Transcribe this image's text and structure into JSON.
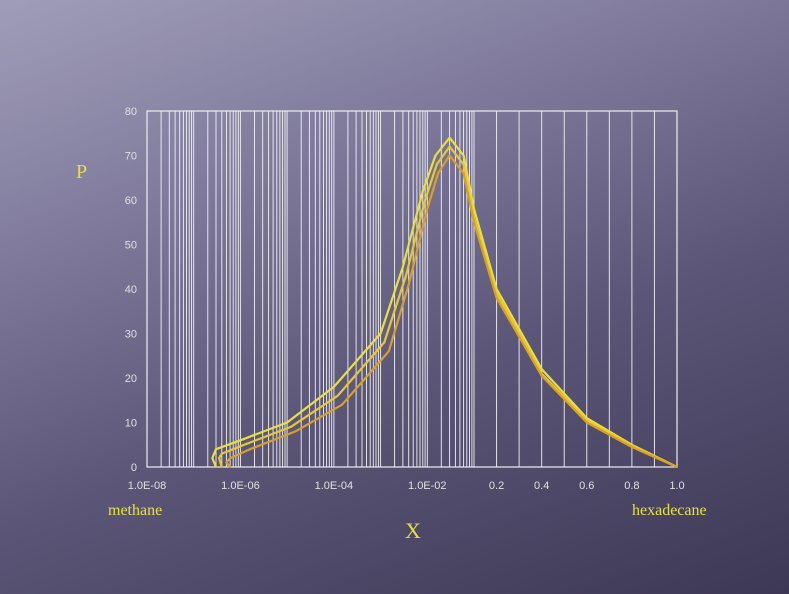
{
  "chart_data": {
    "type": "line",
    "title": "",
    "xlabel": "X",
    "ylabel": "P",
    "x_left_label": "methane",
    "x_right_label": "hexadecane",
    "ylim": [
      0,
      80
    ],
    "yticks": [
      "0",
      "10",
      "20",
      "30",
      "40",
      "50",
      "60",
      "70",
      "80"
    ],
    "x_scale": "log from 1.0E-08 to 0.1, linear from 0.1 to 1.0",
    "xlim": [
      1e-08,
      1.0
    ],
    "xticks": [
      "1.0E-08",
      "1.0E-06",
      "1.0E-04",
      "1.0E-02",
      "0.2",
      "0.4",
      "0.6",
      "0.8",
      "1.0"
    ],
    "grid": "vertical",
    "series": [
      {
        "color": "#e8e040",
        "x": [
          3e-07,
          2.5e-07,
          3e-07,
          1e-06,
          1e-05,
          0.0001,
          0.001,
          0.003,
          0.008,
          0.015,
          0.03,
          0.06,
          0.1,
          0.2,
          0.4,
          0.6,
          0.8,
          1.0
        ],
        "y": [
          0,
          2,
          4,
          6,
          10,
          18,
          30,
          45,
          62,
          70,
          74,
          70,
          58,
          40,
          22,
          11,
          5,
          0
        ]
      },
      {
        "color": "#e8c830",
        "x": [
          4e-07,
          3.5e-07,
          4e-07,
          1.2e-06,
          1.2e-05,
          0.00012,
          0.0012,
          0.0035,
          0.009,
          0.016,
          0.03,
          0.06,
          0.1,
          0.2,
          0.4,
          0.6,
          0.8,
          1.0
        ],
        "y": [
          0,
          2,
          3,
          5,
          9,
          16,
          28,
          43,
          60,
          68,
          72,
          68,
          56,
          39,
          21,
          10.5,
          4.8,
          0
        ]
      },
      {
        "color": "#d8a028",
        "x": [
          6e-07,
          5e-07,
          6e-07,
          1.6e-06,
          1.5e-05,
          0.00015,
          0.0015,
          0.004,
          0.01,
          0.017,
          0.03,
          0.06,
          0.1,
          0.2,
          0.4,
          0.6,
          0.8,
          1.0
        ],
        "y": [
          0,
          1,
          2,
          4,
          8,
          14,
          26,
          41,
          58,
          66,
          70,
          66,
          55,
          38,
          20.5,
          10,
          4.5,
          0
        ]
      }
    ]
  }
}
